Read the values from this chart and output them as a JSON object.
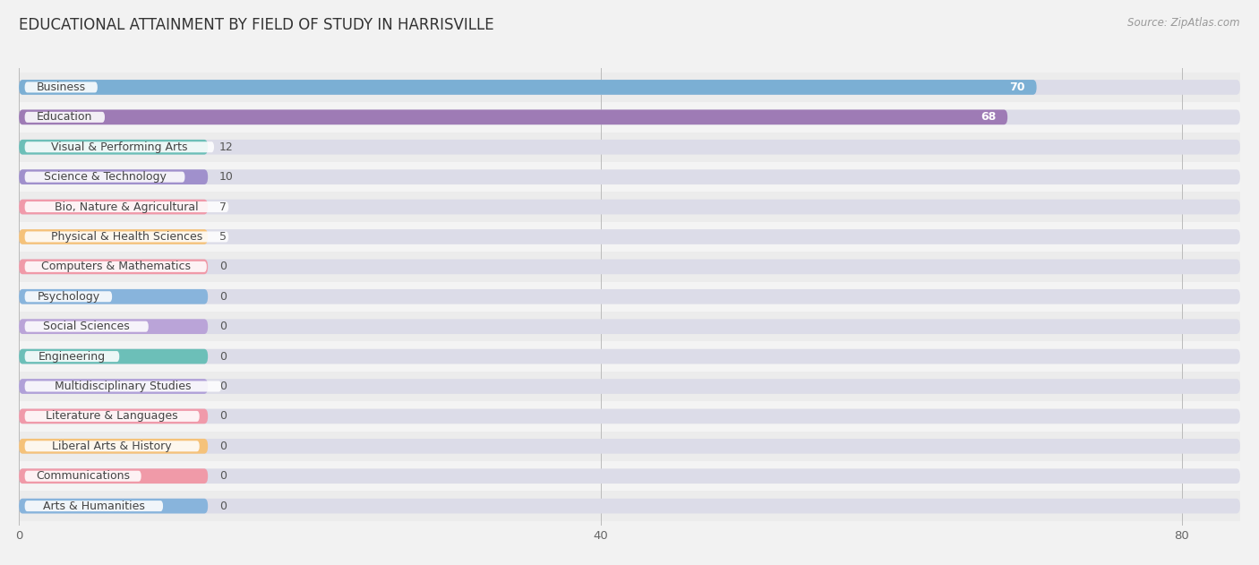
{
  "title": "EDUCATIONAL ATTAINMENT BY FIELD OF STUDY IN HARRISVILLE",
  "source": "Source: ZipAtlas.com",
  "categories": [
    "Business",
    "Education",
    "Visual & Performing Arts",
    "Science & Technology",
    "Bio, Nature & Agricultural",
    "Physical & Health Sciences",
    "Computers & Mathematics",
    "Psychology",
    "Social Sciences",
    "Engineering",
    "Multidisciplinary Studies",
    "Literature & Languages",
    "Liberal Arts & History",
    "Communications",
    "Arts & Humanities"
  ],
  "values": [
    70,
    68,
    12,
    10,
    7,
    5,
    0,
    0,
    0,
    0,
    0,
    0,
    0,
    0,
    0
  ],
  "bar_colors": [
    "#7BAFD4",
    "#9E7BB5",
    "#6CBFB8",
    "#A090CC",
    "#F09AAA",
    "#F5C27A",
    "#F09AA8",
    "#88B4DC",
    "#BAA4D8",
    "#6CBFB8",
    "#B0A0D8",
    "#F09AAA",
    "#F5C27A",
    "#F09AA8",
    "#88B4DC"
  ],
  "xlim_max": 84,
  "xticks": [
    0,
    40,
    80
  ],
  "bg_color": "#f2f2f2",
  "bar_bg_color": "#dcdce8",
  "row_colors": [
    "#ececec",
    "#f4f4f4"
  ],
  "title_fontsize": 12,
  "label_fontsize": 9,
  "value_fontsize": 9,
  "source_fontsize": 8.5
}
